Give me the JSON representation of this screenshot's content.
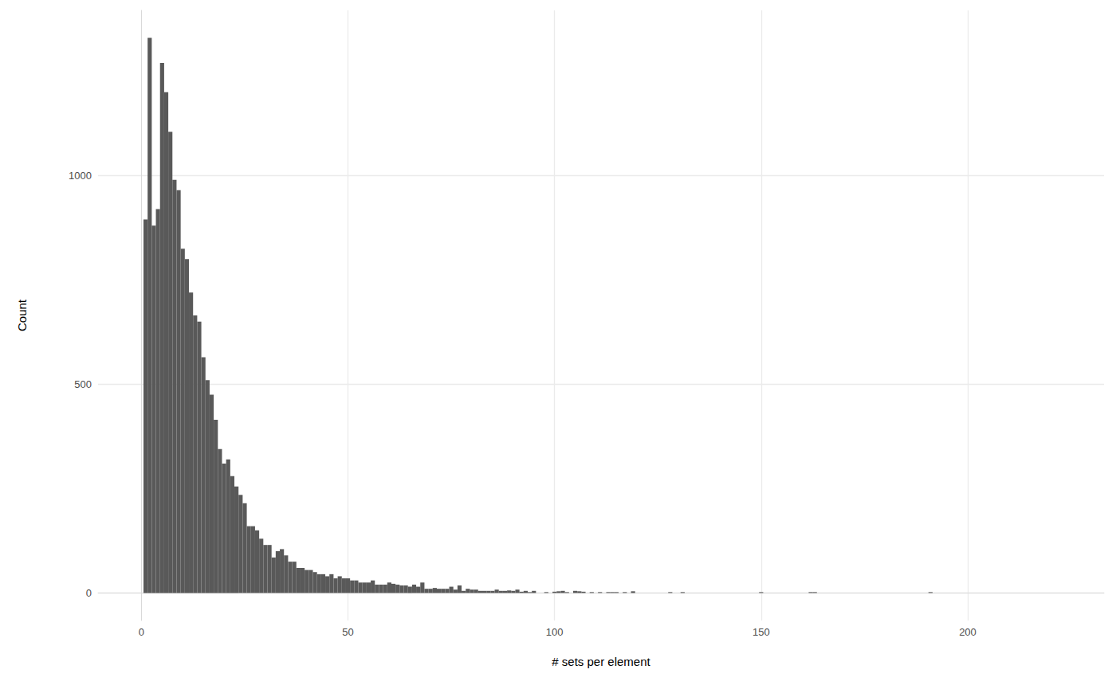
{
  "chart_data": {
    "type": "histogram",
    "x_label": "# sets per element",
    "y_label": "Count",
    "bins": [
      0.5,
      1.5,
      2.5,
      3.5,
      4.5,
      5.5,
      6.5,
      7.5,
      8.5,
      9.5,
      10.5,
      11.5,
      12.5,
      13.5,
      14.5,
      15.5,
      16.5,
      17.5,
      18.5,
      19.5,
      20.5,
      21.5,
      22.5,
      23.5,
      24.5,
      25.5,
      26.5,
      27.5,
      28.5,
      29.5,
      30.5,
      31.5,
      32.5,
      33.5,
      34.5,
      35.5,
      36.5,
      37.5,
      38.5,
      39.5,
      40.5,
      41.5,
      42.5,
      43.5,
      44.5,
      45.5,
      46.5,
      47.5,
      48.5,
      49.5,
      50.5,
      51.5,
      52.5,
      53.5,
      54.5,
      55.5,
      56.5,
      57.5,
      58.5,
      59.5,
      60.5,
      61.5,
      62.5,
      63.5,
      64.5,
      65.5,
      66.5,
      67.5,
      68.5,
      69.5,
      70.5,
      71.5,
      72.5,
      73.5,
      74.5,
      75.5,
      76.5,
      77.5,
      78.5,
      79.5,
      80.5,
      81.5,
      82.5,
      83.5,
      84.5,
      85.5,
      86.5,
      87.5,
      88.5,
      89.5,
      90.5,
      91.5,
      92.5,
      93.5,
      94.5,
      95.5,
      96.5,
      97.5,
      98.5,
      99.5,
      100.5,
      101.5,
      102.5,
      103.5,
      104.5,
      105.5,
      106.5,
      107.5,
      108.5,
      109.5,
      110.5,
      111.5,
      112.5,
      113.5,
      114.5,
      115.5,
      116.5,
      117.5,
      118.5,
      119.5,
      120.5,
      121.5,
      122.5,
      123.5,
      124.5,
      125.5,
      126.5,
      127.5,
      128.5,
      129.5,
      130.5,
      131.5,
      132.5,
      133.5,
      134.5,
      135.5,
      136.5,
      137.5,
      138.5,
      139.5,
      140.5,
      141.5,
      142.5,
      143.5,
      144.5,
      145.5,
      146.5,
      147.5,
      148.5,
      149.5,
      150.5,
      151.5,
      152.5,
      153.5,
      154.5,
      155.5,
      156.5,
      157.5,
      158.5,
      159.5,
      160.5,
      161.5,
      162.5,
      163.5,
      164.5,
      165.5,
      166.5,
      167.5,
      168.5,
      169.5,
      170.5,
      171.5,
      172.5,
      173.5,
      174.5,
      175.5,
      176.5,
      177.5,
      178.5,
      179.5,
      180.5,
      181.5,
      182.5,
      183.5,
      184.5,
      185.5,
      186.5,
      187.5,
      188.5,
      189.5,
      190.5,
      191.5
    ],
    "values": [
      895,
      1330,
      880,
      920,
      1270,
      1200,
      1105,
      990,
      965,
      825,
      800,
      720,
      665,
      650,
      565,
      510,
      475,
      415,
      345,
      310,
      320,
      280,
      255,
      235,
      215,
      160,
      160,
      150,
      130,
      115,
      115,
      85,
      100,
      105,
      90,
      75,
      75,
      60,
      60,
      55,
      55,
      50,
      45,
      45,
      40,
      45,
      35,
      40,
      35,
      35,
      30,
      30,
      25,
      25,
      25,
      30,
      20,
      20,
      20,
      25,
      22,
      20,
      18,
      18,
      15,
      20,
      15,
      25,
      10,
      10,
      12,
      10,
      10,
      10,
      15,
      8,
      18,
      5,
      10,
      8,
      8,
      5,
      5,
      5,
      5,
      8,
      5,
      5,
      6,
      5,
      8,
      3,
      5,
      2,
      5,
      0,
      0,
      2,
      0,
      3,
      4,
      5,
      2,
      0,
      5,
      4,
      3,
      0,
      2,
      0,
      2,
      0,
      2,
      2,
      2,
      0,
      2,
      0,
      4,
      0,
      0,
      0,
      0,
      0,
      0,
      0,
      0,
      2,
      0,
      0,
      2,
      0,
      0,
      0,
      0,
      0,
      0,
      0,
      0,
      0,
      0,
      0,
      0,
      0,
      0,
      0,
      0,
      0,
      0,
      2,
      0,
      0,
      0,
      0,
      0,
      0,
      0,
      0,
      0,
      0,
      0,
      2,
      2,
      0,
      0,
      0,
      0,
      0,
      0,
      0,
      0,
      0,
      0,
      0,
      0,
      0,
      0,
      0,
      0,
      0,
      0,
      0,
      0,
      0,
      0,
      0,
      0,
      0,
      0,
      0,
      2
    ],
    "color": "#595959",
    "xlim": [
      -10.5,
      233
    ],
    "xticks": [
      0,
      50,
      100,
      150,
      200
    ],
    "ylim": [
      -66,
      1396
    ],
    "yticks": [
      0,
      500,
      1000
    ],
    "grid": true
  }
}
